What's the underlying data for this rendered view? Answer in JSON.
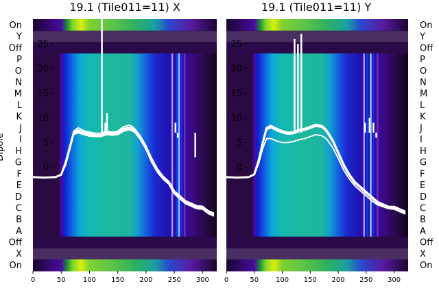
{
  "chart_data": [
    {
      "type": "heatmap",
      "title": "19.1 (Tile011=11) X",
      "ylabel": "Dipole",
      "x_ticks": [
        0,
        50,
        100,
        150,
        200,
        250,
        300
      ],
      "y_ticks": [
        0,
        5,
        10,
        15,
        20,
        25
      ],
      "xlim": [
        0,
        325
      ],
      "ylim": [
        -21,
        30
      ],
      "row_labels": [
        "On",
        "Y",
        "Off",
        "P",
        "O",
        "N",
        "M",
        "L",
        "K",
        "J",
        "I",
        "H",
        "G",
        "F",
        "E",
        "D",
        "C",
        "B",
        "A",
        "Off",
        "X",
        "On"
      ],
      "series": [
        {
          "x": [
            0,
            20,
            40,
            50,
            58,
            65,
            72,
            80,
            90,
            100,
            110,
            120,
            130,
            140,
            150,
            160,
            170,
            175,
            180,
            190,
            200,
            210,
            220,
            230,
            240,
            250,
            260,
            270,
            280,
            290,
            300,
            310,
            320
          ],
          "y": [
            -2,
            -2.1,
            -2,
            -1.5,
            1,
            4,
            7,
            7.5,
            7,
            6.8,
            6.5,
            6.5,
            7,
            6.8,
            7,
            7.8,
            8,
            7.9,
            7.5,
            6,
            4,
            1.5,
            -0.5,
            -2,
            -3,
            -5,
            -6,
            -7,
            -7.5,
            -8,
            -8,
            -9,
            -9.5
          ]
        },
        {
          "x": [
            0,
            20,
            40,
            50,
            58,
            65,
            72,
            80,
            90,
            100,
            110,
            120,
            130,
            140,
            150,
            160,
            170,
            175,
            180,
            190,
            200,
            210,
            220,
            230,
            240,
            250,
            260,
            270,
            280,
            290,
            300,
            310,
            320
          ],
          "y": [
            -2,
            -2.1,
            -2,
            -1.5,
            0.5,
            3.5,
            6.8,
            7.2,
            6.8,
            6.5,
            6.3,
            6.3,
            6.8,
            6.6,
            6.8,
            7.5,
            7.8,
            7.6,
            7.3,
            5.8,
            3.8,
            1.2,
            -0.8,
            -2.2,
            -3.2,
            -5.2,
            -6.2,
            -7.2,
            -7.7,
            -8.2,
            -8.3,
            -9.2,
            -9.7
          ]
        },
        {
          "x": [
            0,
            20,
            40,
            50,
            58,
            65,
            72,
            80,
            90,
            100,
            110,
            120,
            130,
            140,
            150,
            160,
            170,
            175,
            180,
            190,
            200,
            210,
            220,
            230,
            240,
            250,
            260,
            270,
            280,
            290,
            300,
            310,
            320
          ],
          "y": [
            -2,
            -2.1,
            -2,
            -1.5,
            0.8,
            3.8,
            7.3,
            8,
            7.4,
            7.1,
            6.9,
            6.9,
            7.3,
            7.1,
            7.3,
            8.2,
            8.5,
            8.3,
            7.8,
            6.3,
            4.3,
            1.8,
            -0.3,
            -1.8,
            -2.8,
            -4.8,
            -5.8,
            -6.8,
            -7.3,
            -7.8,
            -7.9,
            -8.8,
            -9.3
          ]
        },
        {
          "x": [
            0,
            20,
            40,
            50,
            58,
            65,
            72,
            80,
            90,
            100,
            110,
            120,
            130,
            140,
            150,
            160,
            170,
            175,
            180,
            190,
            200,
            210,
            220,
            230,
            240,
            250,
            260,
            270,
            280,
            290,
            300,
            310,
            320
          ],
          "y": [
            -2,
            -2.1,
            -2,
            -1.6,
            0.6,
            3.6,
            6.6,
            7.0,
            6.6,
            6.3,
            6.2,
            6.2,
            6.6,
            6.5,
            6.6,
            7.3,
            7.6,
            7.4,
            7.1,
            5.6,
            3.6,
            1.0,
            -1.0,
            -2.4,
            -3.4,
            -5.4,
            -6.4,
            -7.4,
            -7.9,
            -8.4,
            -8.5,
            -9.4,
            -9.9
          ]
        }
      ],
      "spikes": [
        {
          "x": 122,
          "y_top": 30
        },
        {
          "x": 128,
          "y_top": 9
        },
        {
          "x": 131,
          "y_top": 11
        },
        {
          "x": 249,
          "y_top": 7
        },
        {
          "x": 252,
          "y_top": 9
        },
        {
          "x": 256,
          "y_top": 6
        },
        {
          "x": 287,
          "y_top": 2
        }
      ],
      "spectrum_stops": [
        {
          "x": 0,
          "color": "#2a0a40"
        },
        {
          "x": 45,
          "color": "#2a0a40"
        },
        {
          "x": 50,
          "color": "#4a0aa0"
        },
        {
          "x": 56,
          "color": "#1020d0"
        },
        {
          "x": 68,
          "color": "#0f5fe0"
        },
        {
          "x": 82,
          "color": "#0ea6d8"
        },
        {
          "x": 100,
          "color": "#14b8b0"
        },
        {
          "x": 140,
          "color": "#1cb89c"
        },
        {
          "x": 170,
          "color": "#1eb4a0"
        },
        {
          "x": 185,
          "color": "#13a0d0"
        },
        {
          "x": 200,
          "color": "#1560e0"
        },
        {
          "x": 215,
          "color": "#1a2ad0"
        },
        {
          "x": 240,
          "color": "#2210b0"
        },
        {
          "x": 280,
          "color": "#3a0a8a"
        },
        {
          "x": 300,
          "color": "#2a0a50"
        },
        {
          "x": 325,
          "color": "#14051e"
        }
      ],
      "onband_stops": [
        {
          "x": 0,
          "color": "#1a0530"
        },
        {
          "x": 50,
          "color": "#4a0aa0"
        },
        {
          "x": 60,
          "color": "#1b8a3a"
        },
        {
          "x": 70,
          "color": "#7cd62a"
        },
        {
          "x": 85,
          "color": "#d9f00e"
        },
        {
          "x": 100,
          "color": "#7ed030"
        },
        {
          "x": 140,
          "color": "#5dc44a"
        },
        {
          "x": 180,
          "color": "#2fb060"
        },
        {
          "x": 215,
          "color": "#1aa0a0"
        },
        {
          "x": 240,
          "color": "#2a4ad0"
        },
        {
          "x": 280,
          "color": "#5a1aa0"
        },
        {
          "x": 325,
          "color": "#1a0530"
        }
      ],
      "vertical_lines": [
        {
          "x": 246,
          "color": "#b5a6ff"
        },
        {
          "x": 254,
          "color": "#0a40ff"
        },
        {
          "x": 258,
          "color": "#90e0ff"
        },
        {
          "x": 263,
          "color": "#0a30ff"
        },
        {
          "x": 268,
          "color": "#7a2cc8"
        }
      ]
    },
    {
      "type": "heatmap",
      "title": "19.1 (Tile011=11) Y",
      "ylabel": "",
      "x_ticks": [
        0,
        50,
        100,
        150,
        200,
        250,
        300
      ],
      "y_ticks": [
        0,
        5,
        10,
        15,
        20,
        25
      ],
      "xlim": [
        0,
        325
      ],
      "ylim": [
        -21,
        30
      ],
      "row_labels": [
        "On",
        "Y",
        "Off",
        "P",
        "O",
        "N",
        "M",
        "L",
        "K",
        "J",
        "I",
        "H",
        "G",
        "F",
        "E",
        "D",
        "C",
        "B",
        "A",
        "Off",
        "X",
        "On"
      ],
      "series": [
        {
          "x": [
            0,
            20,
            40,
            50,
            58,
            65,
            72,
            80,
            90,
            100,
            110,
            120,
            130,
            140,
            150,
            160,
            170,
            175,
            180,
            190,
            200,
            210,
            220,
            230,
            240,
            250,
            260,
            270,
            280,
            290,
            300,
            310,
            320
          ],
          "y": [
            -2,
            -2.1,
            -2,
            -1.4,
            1.5,
            5,
            8,
            8.4,
            7.8,
            7.3,
            7.0,
            7.1,
            7.6,
            7.8,
            8.2,
            8.6,
            8.4,
            8.0,
            7.3,
            5.5,
            3,
            0.5,
            -1.5,
            -3,
            -4,
            -5,
            -6,
            -7,
            -7.5,
            -8,
            -8,
            -8.5,
            -9
          ]
        },
        {
          "x": [
            0,
            20,
            40,
            50,
            58,
            65,
            72,
            80,
            90,
            100,
            110,
            120,
            130,
            140,
            150,
            160,
            170,
            175,
            180,
            190,
            200,
            210,
            220,
            230,
            240,
            250,
            260,
            270,
            280,
            290,
            300,
            310,
            320
          ],
          "y": [
            -2,
            -2.1,
            -2,
            -1.4,
            1.2,
            4.6,
            7.6,
            8.0,
            7.4,
            7.0,
            6.7,
            6.8,
            7.3,
            7.5,
            7.9,
            8.3,
            8.1,
            7.7,
            7.0,
            5.2,
            2.7,
            0.2,
            -1.8,
            -3.3,
            -4.3,
            -5.3,
            -6.3,
            -7.3,
            -7.8,
            -8.3,
            -8.3,
            -8.8,
            -9.3
          ]
        },
        {
          "x": [
            0,
            20,
            40,
            50,
            58,
            65,
            72,
            80,
            90,
            100,
            110,
            120,
            130,
            140,
            150,
            160,
            170,
            175,
            180,
            190,
            200,
            210,
            220,
            230,
            240,
            250,
            260,
            270,
            280,
            290,
            300,
            310,
            320
          ],
          "y": [
            -2,
            -2.1,
            -2,
            -1.5,
            0.8,
            3.8,
            5.8,
            5.8,
            5.3,
            5.0,
            5.0,
            5.2,
            5.6,
            5.8,
            6.2,
            6.6,
            6.4,
            6.1,
            5.6,
            4.0,
            1.8,
            -0.6,
            -2.4,
            -3.8,
            -4.8,
            -5.8,
            -6.8,
            -7.6,
            -8.0,
            -8.4,
            -8.5,
            -9.0,
            -9.5
          ]
        },
        {
          "x": [
            0,
            20,
            40,
            50,
            58,
            65,
            72,
            80,
            90,
            100,
            110,
            120,
            130,
            140,
            150,
            160,
            170,
            175,
            180,
            190,
            200,
            210,
            220,
            230,
            240,
            250,
            260,
            270,
            280,
            290,
            300,
            310,
            320
          ],
          "y": [
            -2,
            -2.1,
            -2,
            -1.4,
            1.4,
            4.8,
            7.9,
            8.2,
            7.6,
            7.2,
            6.9,
            7.0,
            7.5,
            7.7,
            8.1,
            8.5,
            8.3,
            7.9,
            7.2,
            5.4,
            2.9,
            0.4,
            -1.6,
            -3.1,
            -4.1,
            -5.1,
            -6.1,
            -7.1,
            -7.6,
            -8.1,
            -8.1,
            -8.6,
            -9.1
          ]
        }
      ],
      "spikes": [
        {
          "x": 122,
          "y_top": 26
        },
        {
          "x": 128,
          "y_top": 25
        },
        {
          "x": 134,
          "y_top": 27
        },
        {
          "x": 248,
          "y_top": 9
        },
        {
          "x": 256,
          "y_top": 10
        },
        {
          "x": 263,
          "y_top": 9
        },
        {
          "x": 268,
          "y_top": 6
        }
      ],
      "spectrum_stops": [
        {
          "x": 0,
          "color": "#2a0a40"
        },
        {
          "x": 45,
          "color": "#2a0a40"
        },
        {
          "x": 50,
          "color": "#4a0aa0"
        },
        {
          "x": 56,
          "color": "#1020d0"
        },
        {
          "x": 68,
          "color": "#0f5fe0"
        },
        {
          "x": 82,
          "color": "#0ea6d8"
        },
        {
          "x": 100,
          "color": "#14b8b0"
        },
        {
          "x": 140,
          "color": "#1cb89c"
        },
        {
          "x": 170,
          "color": "#1eb4a0"
        },
        {
          "x": 185,
          "color": "#13a0d0"
        },
        {
          "x": 200,
          "color": "#1560e0"
        },
        {
          "x": 215,
          "color": "#1a2ad0"
        },
        {
          "x": 240,
          "color": "#2210b0"
        },
        {
          "x": 280,
          "color": "#3a0a8a"
        },
        {
          "x": 300,
          "color": "#2a0a50"
        },
        {
          "x": 325,
          "color": "#14051e"
        }
      ],
      "onband_stops": [
        {
          "x": 0,
          "color": "#1a0530"
        },
        {
          "x": 50,
          "color": "#4a0aa0"
        },
        {
          "x": 60,
          "color": "#1b8a3a"
        },
        {
          "x": 70,
          "color": "#7cd62a"
        },
        {
          "x": 85,
          "color": "#d9f00e"
        },
        {
          "x": 100,
          "color": "#7ed030"
        },
        {
          "x": 140,
          "color": "#5dc44a"
        },
        {
          "x": 180,
          "color": "#2fb060"
        },
        {
          "x": 215,
          "color": "#1aa0a0"
        },
        {
          "x": 240,
          "color": "#2a4ad0"
        },
        {
          "x": 280,
          "color": "#5a1aa0"
        },
        {
          "x": 325,
          "color": "#1a0530"
        }
      ],
      "vertical_lines": [
        {
          "x": 246,
          "color": "#b5a6ff"
        },
        {
          "x": 252,
          "color": "#0a40ff"
        },
        {
          "x": 258,
          "color": "#90e0ff"
        },
        {
          "x": 263,
          "color": "#0a30ff"
        },
        {
          "x": 270,
          "color": "#7a2cc8"
        }
      ]
    }
  ],
  "colors": {
    "background": "#ffffff",
    "text": "#000000",
    "tick_text_inside": "#000000",
    "trace": "#ffffff",
    "off_band": "#2a0a48"
  }
}
